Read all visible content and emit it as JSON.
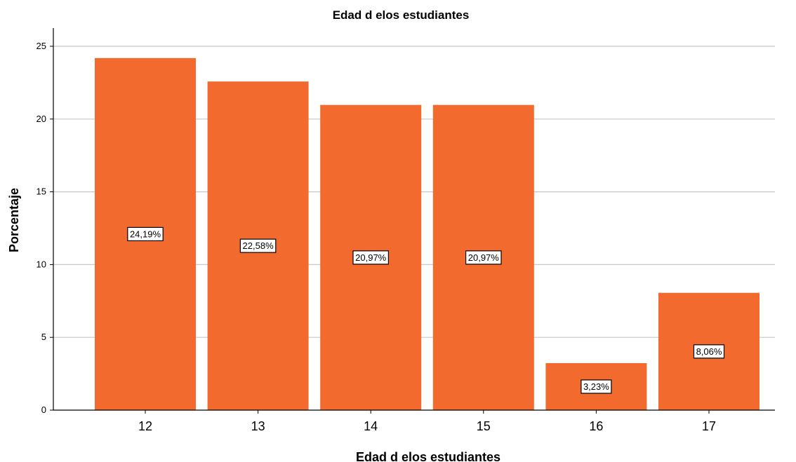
{
  "chart_data": {
    "type": "bar",
    "title": "Edad d elos estudiantes",
    "xlabel": "Edad d elos estudiantes",
    "ylabel": "Porcentaje",
    "categories": [
      "12",
      "13",
      "14",
      "15",
      "16",
      "17"
    ],
    "values": [
      24.19,
      22.58,
      20.97,
      20.97,
      3.23,
      8.06
    ],
    "data_labels": [
      "24,19%",
      "22,58%",
      "20,97%",
      "20,97%",
      "3,23%",
      "8,06%"
    ],
    "ylim": [
      0,
      26
    ],
    "yticks": [
      0,
      5,
      10,
      15,
      20,
      25
    ],
    "grid": true,
    "legend": "none",
    "bar_color": "#f26a2e",
    "grid_color": "#c8c8c8"
  }
}
